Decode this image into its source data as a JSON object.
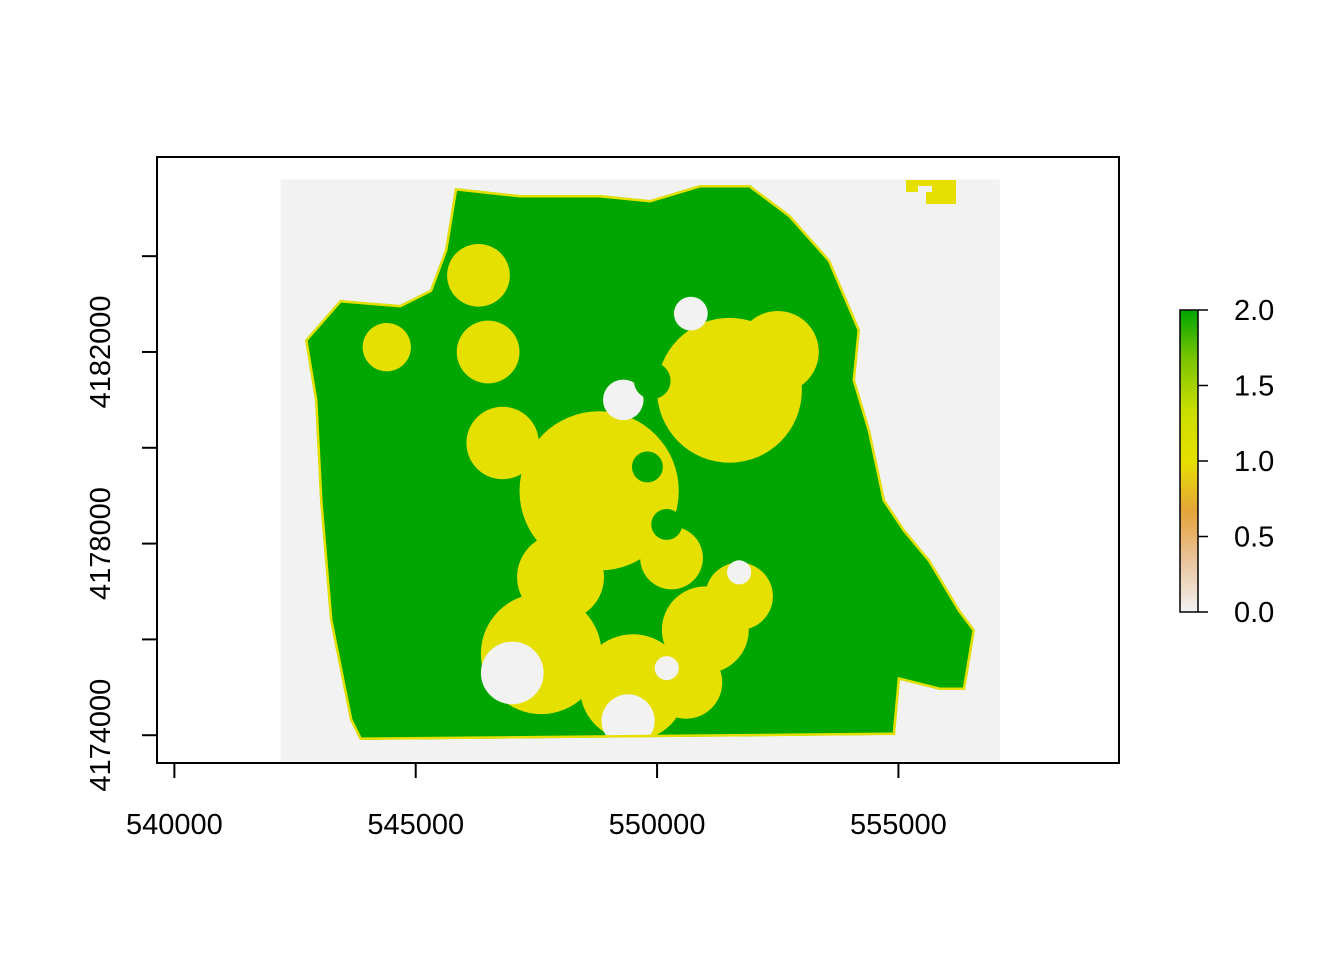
{
  "chart_data": {
    "type": "heatmap",
    "title": "",
    "xlabel": "",
    "ylabel": "",
    "x_ticks": [
      540000,
      545000,
      550000,
      555000
    ],
    "x_tick_labels": [
      "540000",
      "545000",
      "550000",
      "555000"
    ],
    "y_ticks": [
      4174000,
      4178000,
      4182000
    ],
    "y_tick_labels": [
      "4174000",
      "4178000",
      "4182000"
    ],
    "xlim": [
      539640,
      559570
    ],
    "ylim": [
      4173420,
      4186070
    ],
    "raster_extent": {
      "xmin": 542200,
      "xmax": 557100,
      "ymin": 4173450,
      "ymax": 4185600
    },
    "value_range": [
      0,
      2
    ],
    "legend": {
      "position": "right",
      "ticks": [
        2.0,
        1.5,
        1.0,
        0.5,
        0.0
      ],
      "tick_labels": [
        "2.0",
        "1.5",
        "1.0",
        "0.5",
        "0.0"
      ],
      "colors": [
        "#f2f2f2",
        "#eac49e",
        "#e4a43a",
        "#e6e000",
        "#c9de00",
        "#7ec500",
        "#00a600"
      ]
    },
    "colors": {
      "no_data_background": "#f2f2f2",
      "value_0": "#f2f2f2",
      "value_1": "#e6e000",
      "value_2": "#00a600"
    },
    "regions": {
      "city_outline_value": 2,
      "value_1_zones": [
        {
          "cx": 548800,
          "cy": 4179100,
          "r": 1650
        },
        {
          "cx": 551500,
          "cy": 4181200,
          "r": 1500
        },
        {
          "cx": 546500,
          "cy": 4182000,
          "r": 650
        },
        {
          "cx": 552500,
          "cy": 4182000,
          "r": 850
        },
        {
          "cx": 547600,
          "cy": 4175700,
          "r": 1250
        },
        {
          "cx": 549500,
          "cy": 4175000,
          "r": 1100
        },
        {
          "cx": 551000,
          "cy": 4176200,
          "r": 900
        },
        {
          "cx": 544400,
          "cy": 4182100,
          "r": 500
        },
        {
          "cx": 546300,
          "cy": 4183600,
          "r": 650
        },
        {
          "cx": 550300,
          "cy": 4177700,
          "r": 650
        },
        {
          "cx": 551700,
          "cy": 4176900,
          "r": 700
        },
        {
          "cx": 550600,
          "cy": 4175100,
          "r": 750
        },
        {
          "cx": 548000,
          "cy": 4177300,
          "r": 900
        },
        {
          "cx": 546800,
          "cy": 4180100,
          "r": 750
        }
      ],
      "value_0_zones": [
        {
          "cx": 547000,
          "cy": 4175300,
          "r": 650
        },
        {
          "cx": 549400,
          "cy": 4174300,
          "r": 550
        },
        {
          "cx": 549300,
          "cy": 4181000,
          "r": 420
        },
        {
          "cx": 550700,
          "cy": 4182800,
          "r": 350
        },
        {
          "cx": 551700,
          "cy": 4177400,
          "r": 250
        },
        {
          "cx": 550200,
          "cy": 4175400,
          "r": 250
        }
      ],
      "value_2_zones": [
        {
          "cx": 549800,
          "cy": 4179600,
          "r": 320
        },
        {
          "cx": 550200,
          "cy": 4178400,
          "r": 320
        },
        {
          "cx": 549900,
          "cy": 4181400,
          "r": 380
        }
      ]
    }
  }
}
